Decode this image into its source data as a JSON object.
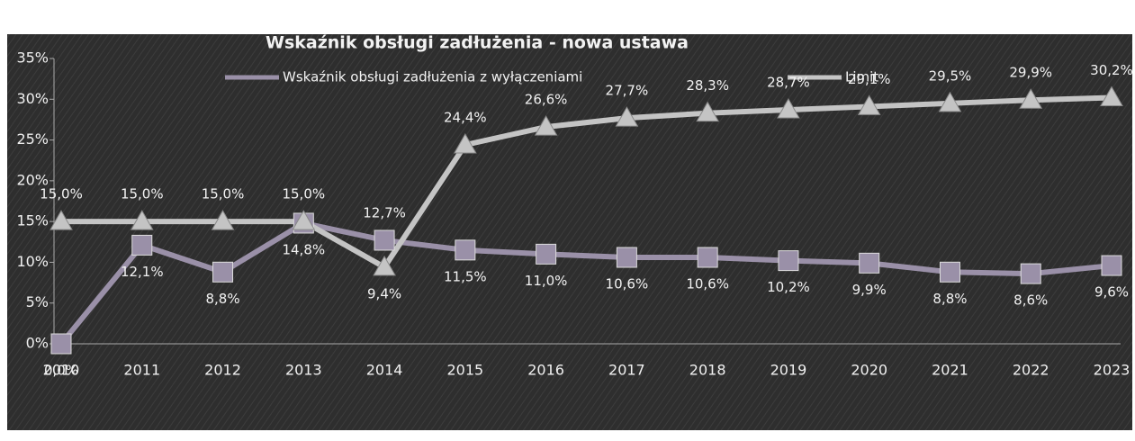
{
  "chart_data": {
    "type": "line",
    "title": "Wskaźnik obsługi zadłużenia - nowa ustawa",
    "categories": [
      "2010",
      "2011",
      "2012",
      "2013",
      "2014",
      "2015",
      "2016",
      "2017",
      "2018",
      "2019",
      "2020",
      "2021",
      "2022",
      "2023"
    ],
    "series": [
      {
        "name": "Wskaźnik obsługi zadłużenia z wyłączeniami",
        "color": "#9a90a8",
        "marker": "box",
        "values": [
          0.0,
          12.1,
          8.8,
          14.8,
          12.7,
          11.5,
          11.0,
          10.6,
          10.6,
          10.2,
          9.9,
          8.8,
          8.6,
          9.6
        ],
        "value_labels": [
          "0,0%",
          "12,1%",
          "8,8%",
          "14,8%",
          "12,7%",
          "11,5%",
          "11,0%",
          "10,6%",
          "10,6%",
          "10,2%",
          "9,9%",
          "8,8%",
          "8,6%",
          "9,6%"
        ]
      },
      {
        "name": "Limit",
        "color": "#c4c4c4",
        "marker": "triangle",
        "values": [
          15.0,
          15.0,
          15.0,
          15.0,
          9.4,
          24.4,
          26.6,
          27.7,
          28.3,
          28.7,
          29.1,
          29.5,
          29.9,
          30.2
        ],
        "value_labels": [
          "15,0%",
          "15,0%",
          "15,0%",
          "15,0%",
          "9,4%",
          "24,4%",
          "26,6%",
          "27,7%",
          "28,3%",
          "28,7%",
          "29,1%",
          "29,5%",
          "29,9%",
          "30,2%"
        ]
      }
    ],
    "ylim": [
      0,
      35
    ],
    "yticks": [
      {
        "value": 0,
        "label": "0%"
      },
      {
        "value": 5,
        "label": "5%"
      },
      {
        "value": 10,
        "label": "10%"
      },
      {
        "value": 15,
        "label": "15%"
      },
      {
        "value": 20,
        "label": "20%"
      },
      {
        "value": 25,
        "label": "25%"
      },
      {
        "value": 30,
        "label": "30%"
      },
      {
        "value": 35,
        "label": "35%"
      }
    ]
  }
}
